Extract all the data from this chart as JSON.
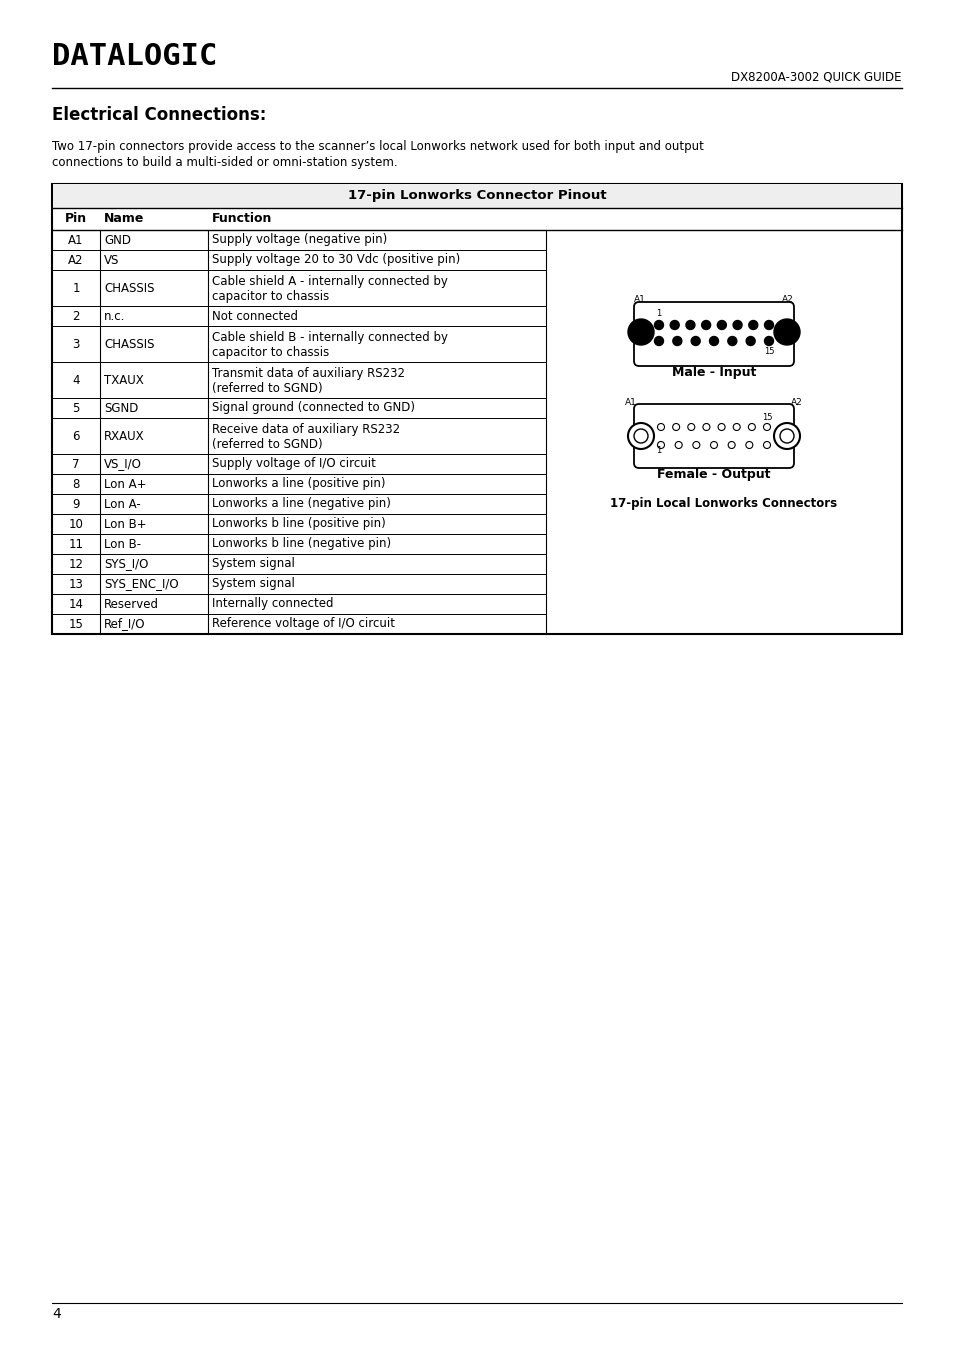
{
  "title_logo": "DATALOGIC",
  "header_right": "DX8200A-3002 QUICK GUIDE",
  "section_title": "Electrical Connections:",
  "intro_line1": "Two 17-pin connectors provide access to the scanner’s local Lonworks network used for both input and output",
  "intro_line2": "connections to build a multi-sided or omni-station system.",
  "table_title": "17-pin Lonworks Connector Pinout",
  "col_headers": [
    "Pin",
    "Name",
    "Function"
  ],
  "rows": [
    [
      "A1",
      "GND",
      "Supply voltage (negative pin)",
      false
    ],
    [
      "A2",
      "VS",
      "Supply voltage 20 to 30 Vdc (positive pin)",
      false
    ],
    [
      "1",
      "CHASSIS",
      "Cable shield A - internally connected by\ncapacitor to chassis",
      true
    ],
    [
      "2",
      "n.c.",
      "Not connected",
      false
    ],
    [
      "3",
      "CHASSIS",
      "Cable shield B - internally connected by\ncapacitor to chassis",
      true
    ],
    [
      "4",
      "TXAUX",
      "Transmit data of auxiliary RS232\n(referred to SGND)",
      true
    ],
    [
      "5",
      "SGND",
      "Signal ground (connected to GND)",
      false
    ],
    [
      "6",
      "RXAUX",
      "Receive data of auxiliary RS232\n(referred to SGND)",
      true
    ],
    [
      "7",
      "VS_I/O",
      "Supply voltage of I/O circuit",
      false
    ],
    [
      "8",
      "Lon A+",
      "Lonworks a line (positive pin)",
      false
    ],
    [
      "9",
      "Lon A-",
      "Lonworks a line (negative pin)",
      false
    ],
    [
      "10",
      "Lon B+",
      "Lonworks b line (positive pin)",
      false
    ],
    [
      "11",
      "Lon B-",
      "Lonworks b line (negative pin)",
      false
    ],
    [
      "12",
      "SYS_I/O",
      "System signal",
      false
    ],
    [
      "13",
      "SYS_ENC_I/O",
      "System signal",
      false
    ],
    [
      "14",
      "Reserved",
      "Internally connected",
      false
    ],
    [
      "15",
      "Ref_I/O",
      "Reference voltage of I/O circuit",
      false
    ]
  ],
  "male_label": "Male - Input",
  "female_label": "Female - Output",
  "connector_label": "17-pin Local Lonworks Connectors",
  "page_number": "4",
  "bg_color": "#ffffff",
  "text_color": "#000000"
}
